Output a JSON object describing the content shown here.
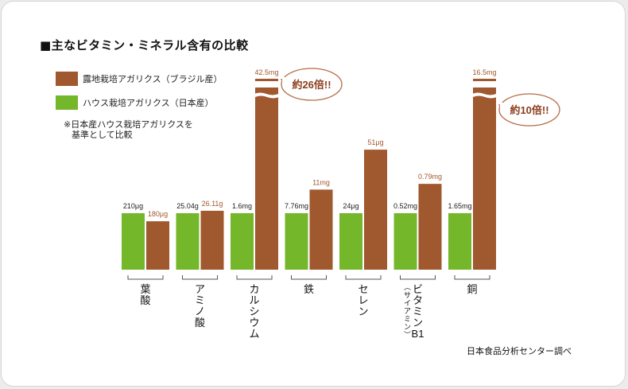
{
  "title": "■主なビタミン・ミネラル含有の比較",
  "note": [
    "※日本産ハウス栽培アガリクスを",
    "基準として比較"
  ],
  "source": "日本食品分析センター調べ",
  "colors": {
    "brazil": "#a0582f",
    "japan": "#75b72b",
    "label_brazil": "#a0582f",
    "callout_border": "#b56b45"
  },
  "legend": [
    {
      "label": "露地栽培アガリクス（ブラジル産）",
      "color": "#a0582f"
    },
    {
      "label": "ハウス栽培アガリクス（日本産）",
      "color": "#75b72b"
    }
  ],
  "callouts": [
    {
      "text": "約26倍!!",
      "category_index": 2
    },
    {
      "text": "約10倍!!",
      "category_index": 6
    }
  ],
  "chart_data": {
    "type": "bar",
    "categories": [
      "葉酸",
      "アミノ酸",
      "カルシウム",
      "鉄",
      "セレン",
      "ビタミンB1",
      "銅"
    ],
    "category_labels": [
      [
        "葉",
        "酸"
      ],
      [
        "ア",
        "ミ",
        "ノ",
        "酸"
      ],
      [
        "カ",
        "ル",
        "シ",
        "ウ",
        "ム"
      ],
      [
        "鉄"
      ],
      [
        "セ",
        "レ",
        "ン"
      ],
      [
        "ビ",
        "タ",
        "ミ",
        "ン",
        "B1"
      ],
      [
        "銅"
      ]
    ],
    "category_sub_labels": [
      null,
      null,
      null,
      null,
      null,
      "︵サイアミン︶",
      null
    ],
    "baseline": "japan",
    "series": [
      {
        "name": "ハウス栽培アガリクス（日本産）",
        "key": "japan",
        "values": [
          210,
          25.04,
          1.6,
          7.76,
          24,
          0.52,
          1.65
        ],
        "labels": [
          "210μg",
          "25.04g",
          "1.6mg",
          "7.76mg",
          "24μg",
          "0.52mg",
          "1.65mg"
        ]
      },
      {
        "name": "露地栽培アガリクス（ブラジル産）",
        "key": "brazil",
        "values": [
          180,
          26.11,
          42.5,
          11,
          51,
          0.79,
          16.5
        ],
        "labels": [
          "180μg",
          "26.11g",
          "42.5mg",
          "11mg",
          "51μg",
          "0.79mg",
          "16.5mg"
        ],
        "broken_axis": [
          false,
          false,
          true,
          false,
          false,
          false,
          true
        ]
      }
    ]
  }
}
